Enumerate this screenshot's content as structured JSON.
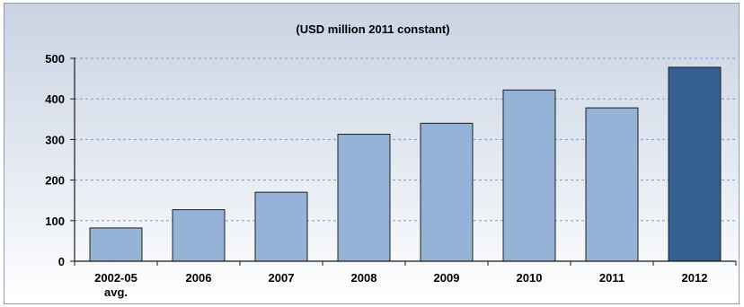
{
  "chart_data": {
    "type": "bar",
    "title": "(USD million 2011 constant)",
    "xlabel": "",
    "ylabel": "",
    "categories": [
      [
        "2002-05",
        "avg."
      ],
      [
        "2006"
      ],
      [
        "2007"
      ],
      [
        "2008"
      ],
      [
        "2009"
      ],
      [
        "2010"
      ],
      [
        "2011"
      ],
      [
        "2012"
      ]
    ],
    "values": [
      82,
      127,
      170,
      313,
      340,
      422,
      378,
      478
    ],
    "highlight_index": 7,
    "ylim": [
      0,
      500
    ],
    "yticks": [
      0,
      100,
      200,
      300,
      400,
      500
    ],
    "grid": "horizontal dashed",
    "legend": "none",
    "colors": {
      "bar": "#95b3d7",
      "bar_highlight": "#365f91",
      "bar_stroke": "#1f1f1f",
      "grid": "#7f9ccc",
      "axis": "#1a1a1a",
      "background_top": "#c9d3e3",
      "background_bottom": "#ffffff"
    }
  }
}
